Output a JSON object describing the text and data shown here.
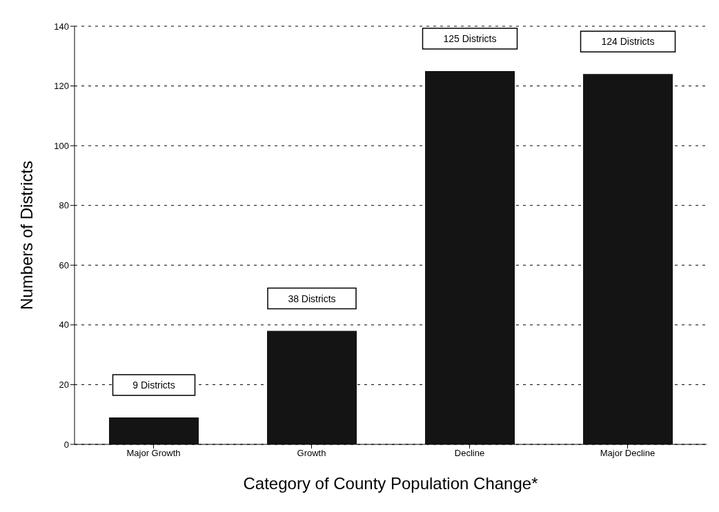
{
  "chart_data": {
    "type": "bar",
    "xlabel": "Category of County Population Change*",
    "ylabel": "Numbers of Districts",
    "categories": [
      "Major Growth",
      "Growth",
      "Decline",
      "Major Decline"
    ],
    "values": [
      9,
      38,
      125,
      124
    ],
    "value_labels": [
      "9 Districts",
      "38 Districts",
      "125 Districts",
      "124 Districts"
    ],
    "color": "#141414",
    "ylim": [
      0,
      140
    ],
    "yticks": [
      0,
      20,
      40,
      60,
      80,
      100,
      120,
      140
    ],
    "grid": "y"
  }
}
